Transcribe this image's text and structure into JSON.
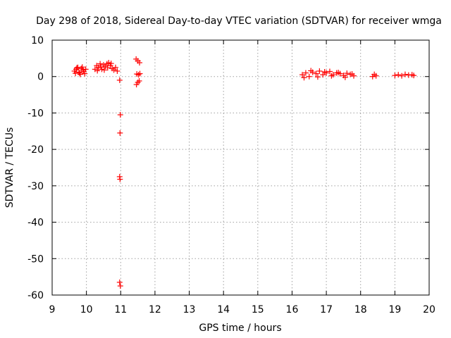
{
  "chart_data": {
    "type": "scatter",
    "title": "Day 298 of 2018, Sidereal Day-to-day VTEC variation (SDTVAR) for receiver wmga",
    "xlabel": "GPS time / hours",
    "ylabel": "SDTVAR / TECUs",
    "xlim": [
      9,
      20
    ],
    "ylim": [
      -60,
      10
    ],
    "xticks": [
      9,
      10,
      11,
      12,
      13,
      14,
      15,
      16,
      17,
      18,
      19,
      20
    ],
    "yticks": [
      10,
      0,
      -10,
      -20,
      -30,
      -40,
      -50,
      -60
    ],
    "xtick_labels": [
      "9",
      "10",
      "11",
      "12",
      "13",
      "14",
      "15",
      "16",
      "17",
      "18",
      "19",
      "20"
    ],
    "ytick_labels": [
      "10",
      "0",
      "-10",
      "-20",
      "-30",
      "-40",
      "-50",
      "-60"
    ],
    "grid": true,
    "marker": "plus",
    "marker_color": "#ff0000",
    "series": [
      {
        "name": "SDTVAR",
        "x": [
          9.65,
          9.7,
          9.75,
          9.8,
          9.85,
          9.9,
          9.95,
          9.68,
          9.78,
          9.88,
          9.72,
          9.82,
          9.92,
          9.98,
          10.25,
          10.3,
          10.35,
          10.4,
          10.45,
          10.5,
          10.55,
          10.6,
          10.65,
          10.7,
          10.75,
          10.8,
          10.85,
          10.9,
          10.32,
          10.42,
          10.52,
          10.62,
          10.72,
          10.97,
          10.99,
          10.98,
          10.97,
          10.98,
          10.97,
          10.99,
          11.45,
          11.5,
          11.55,
          11.47,
          11.52,
          11.56,
          11.46,
          11.5,
          11.54,
          16.3,
          16.4,
          16.5,
          16.6,
          16.7,
          16.8,
          16.9,
          17.0,
          17.1,
          17.2,
          17.3,
          17.4,
          17.5,
          17.6,
          17.7,
          17.8,
          16.35,
          16.55,
          16.75,
          16.95,
          17.15,
          17.35,
          17.55,
          17.75,
          18.35,
          18.4,
          18.45,
          19.0,
          19.1,
          19.2,
          19.3,
          19.4,
          19.5,
          19.55
        ],
        "y": [
          1.5,
          2.0,
          2.5,
          1.0,
          2.2,
          1.8,
          0.8,
          0.9,
          1.2,
          2.6,
          2.4,
          0.6,
          1.4,
          2.0,
          2.0,
          3.0,
          2.5,
          3.5,
          2.0,
          3.2,
          2.8,
          3.5,
          3.8,
          3.0,
          2.2,
          1.8,
          2.5,
          1.5,
          1.6,
          2.6,
          1.8,
          2.4,
          3.6,
          -1.0,
          -10.5,
          -15.5,
          -27.5,
          -28.2,
          -56.5,
          -57.5,
          4.8,
          4.3,
          3.8,
          0.7,
          0.5,
          0.8,
          -2.2,
          -1.6,
          -1.2,
          0.5,
          1.0,
          0.0,
          1.2,
          0.8,
          1.5,
          0.5,
          1.0,
          1.4,
          0.5,
          1.0,
          0.8,
          0.3,
          0.9,
          0.6,
          0.2,
          -0.3,
          1.6,
          -0.1,
          1.3,
          0.2,
          1.1,
          -0.2,
          0.7,
          0.0,
          0.6,
          0.2,
          0.3,
          0.5,
          0.2,
          0.6,
          0.4,
          0.5,
          0.3
        ]
      }
    ]
  }
}
